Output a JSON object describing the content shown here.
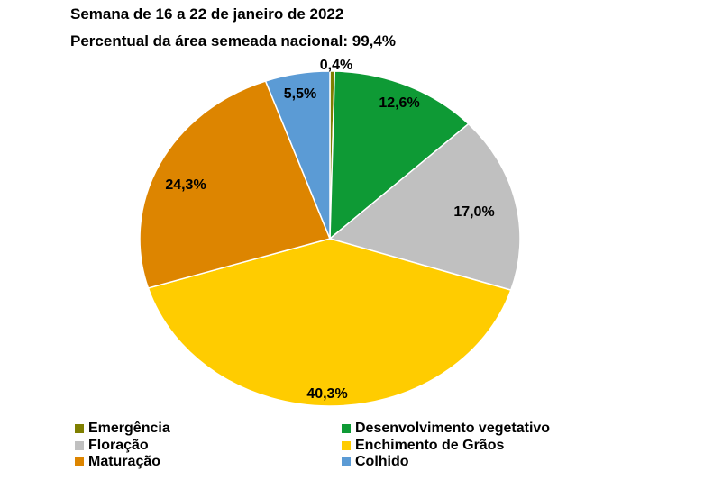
{
  "title": "Semana de 16 a 22 de janeiro de 2022",
  "subtitle": "Percentual da área semeada nacional: 99,4%",
  "chart_data": {
    "type": "pie",
    "slices": [
      {
        "name": "Emergência",
        "value": 0.4,
        "label": "0,4%",
        "color": "#7f7f00"
      },
      {
        "name": "Desenvolvimento vegetativo",
        "value": 12.6,
        "label": "12,6%",
        "color": "#0e9a35"
      },
      {
        "name": "Floração",
        "value": 17.0,
        "label": "17,0%",
        "color": "#c0c0c0"
      },
      {
        "name": "Enchimento de Grãos",
        "value": 40.3,
        "label": "40,3%",
        "color": "#ffcc00"
      },
      {
        "name": "Maturação",
        "value": 24.3,
        "label": "24,3%",
        "color": "#dd8500"
      },
      {
        "name": "Colhido",
        "value": 5.5,
        "label": "5,5%",
        "color": "#5b9bd5"
      }
    ],
    "legend_position": "bottom"
  }
}
